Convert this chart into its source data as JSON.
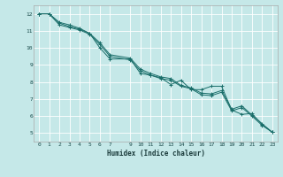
{
  "xlabel": "Humidex (Indice chaleur)",
  "bg_color": "#c5e8e8",
  "grid_color": "#ffffff",
  "line_color": "#1a6e6a",
  "xlim": [
    -0.5,
    23.5
  ],
  "ylim": [
    4.5,
    12.5
  ],
  "xticks": [
    0,
    1,
    2,
    3,
    4,
    5,
    6,
    7,
    9,
    10,
    11,
    12,
    13,
    14,
    15,
    16,
    17,
    18,
    19,
    20,
    21,
    22,
    23
  ],
  "yticks": [
    5,
    6,
    7,
    8,
    9,
    10,
    11,
    12
  ],
  "series": [
    [
      0,
      12.0
    ],
    [
      1,
      12.0
    ],
    [
      2,
      11.5
    ],
    [
      3,
      11.35
    ],
    [
      4,
      11.15
    ],
    [
      5,
      10.85
    ],
    [
      6,
      10.0
    ],
    [
      7,
      9.35
    ],
    [
      9,
      9.35
    ],
    [
      10,
      8.5
    ],
    [
      11,
      8.4
    ],
    [
      12,
      8.25
    ],
    [
      13,
      7.85
    ],
    [
      14,
      8.1
    ],
    [
      15,
      7.55
    ],
    [
      16,
      7.55
    ],
    [
      17,
      7.75
    ],
    [
      18,
      7.75
    ],
    [
      19,
      6.35
    ],
    [
      20,
      6.1
    ],
    [
      21,
      6.15
    ],
    [
      22,
      5.5
    ],
    [
      23,
      5.05
    ]
  ],
  "series2": [
    [
      0,
      12.0
    ],
    [
      1,
      12.0
    ],
    [
      2,
      11.45
    ],
    [
      3,
      11.25
    ],
    [
      4,
      11.1
    ],
    [
      5,
      10.85
    ],
    [
      6,
      10.3
    ],
    [
      7,
      9.6
    ],
    [
      9,
      9.4
    ],
    [
      10,
      8.75
    ],
    [
      11,
      8.5
    ],
    [
      12,
      8.3
    ],
    [
      13,
      8.2
    ],
    [
      14,
      7.8
    ],
    [
      15,
      7.65
    ],
    [
      16,
      7.35
    ],
    [
      17,
      7.3
    ],
    [
      18,
      7.5
    ],
    [
      19,
      6.4
    ],
    [
      20,
      6.6
    ],
    [
      21,
      6.05
    ],
    [
      22,
      5.55
    ],
    [
      23,
      5.05
    ]
  ],
  "series3": [
    [
      0,
      12.0
    ],
    [
      1,
      12.0
    ],
    [
      2,
      11.35
    ],
    [
      3,
      11.2
    ],
    [
      4,
      11.05
    ],
    [
      5,
      10.8
    ],
    [
      6,
      10.2
    ],
    [
      7,
      9.5
    ],
    [
      9,
      9.3
    ],
    [
      10,
      8.65
    ],
    [
      11,
      8.4
    ],
    [
      12,
      8.2
    ],
    [
      13,
      8.1
    ],
    [
      14,
      7.75
    ],
    [
      15,
      7.6
    ],
    [
      16,
      7.25
    ],
    [
      17,
      7.2
    ],
    [
      18,
      7.4
    ],
    [
      19,
      6.3
    ],
    [
      20,
      6.5
    ],
    [
      21,
      6.0
    ],
    [
      22,
      5.45
    ],
    [
      23,
      5.05
    ]
  ]
}
